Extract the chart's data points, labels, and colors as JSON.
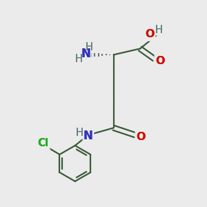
{
  "bg_color": "#ebebeb",
  "bond_color": "#3a5a3a",
  "N_color": "#3333bb",
  "O_color": "#cc1100",
  "Cl_color": "#22aa22",
  "H_color": "#5a7a7a",
  "figsize": [
    3.0,
    3.0
  ],
  "dpi": 100,
  "xlim": [
    0,
    10
  ],
  "ylim": [
    0,
    10
  ],
  "lw": 1.6,
  "fs": 10.5
}
